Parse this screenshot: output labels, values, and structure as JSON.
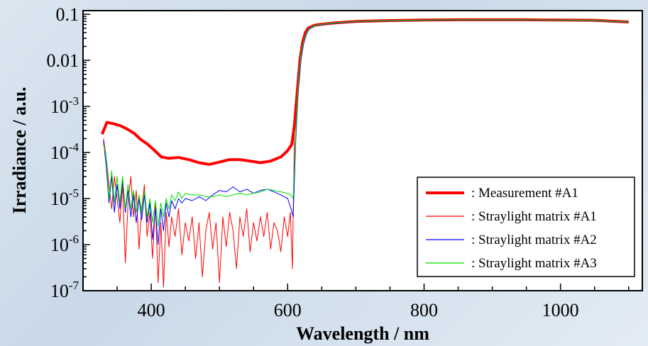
{
  "chart_data": {
    "type": "line",
    "title": "",
    "xlabel": "Wavelength / nm",
    "ylabel": "Irradiance / a.u.",
    "xlim": [
      300,
      1120
    ],
    "ylim": [
      1e-07,
      0.12
    ],
    "yscale": "log",
    "grid": false,
    "legend_position": "bottom-right",
    "x_ticks": [
      400,
      600,
      800,
      1000
    ],
    "x_tick_labels": [
      "400",
      "600",
      "800",
      "1000"
    ],
    "y_ticks": [
      1e-07,
      1e-06,
      1e-05,
      0.0001,
      0.001,
      0.01,
      0.1
    ],
    "y_tick_labels": [
      {
        "base": "10",
        "exp": "-7"
      },
      {
        "base": "10",
        "exp": "-6"
      },
      {
        "base": "10",
        "exp": "-5"
      },
      {
        "base": "10",
        "exp": "-4"
      },
      {
        "base": "10",
        "exp": "-3"
      },
      {
        "base": "0.01",
        "exp": ""
      },
      {
        "base": "0.1",
        "exp": ""
      }
    ],
    "series": [
      {
        "name": ": Measurement #A1",
        "color": "#ff0000",
        "line_width": 4,
        "x": [
          328,
          335,
          345,
          355,
          365,
          375,
          385,
          395,
          405,
          415,
          425,
          440,
          455,
          470,
          485,
          500,
          515,
          530,
          545,
          560,
          575,
          590,
          600,
          606,
          610,
          614,
          618,
          622,
          626,
          630,
          640,
          655,
          670,
          700,
          750,
          800,
          850,
          900,
          950,
          1000,
          1050,
          1100
        ],
        "y": [
          0.00025,
          0.00045,
          0.00042,
          0.00038,
          0.00032,
          0.00026,
          0.00019,
          0.00015,
          0.00011,
          8e-05,
          7.5e-05,
          7.8e-05,
          7e-05,
          6e-05,
          5.5e-05,
          6.2e-05,
          7e-05,
          7e-05,
          6.5e-05,
          6e-05,
          6.5e-05,
          8e-05,
          0.00011,
          0.00015,
          0.0004,
          0.002,
          0.01,
          0.025,
          0.04,
          0.05,
          0.058,
          0.062,
          0.065,
          0.07,
          0.073,
          0.075,
          0.076,
          0.076,
          0.076,
          0.075,
          0.074,
          0.068
        ]
      },
      {
        "name": ": Straylight matrix #A1",
        "color": "#ff0000",
        "line_width": 1,
        "x": [
          330,
          334,
          338,
          342,
          346,
          350,
          354,
          358,
          362,
          366,
          370,
          374,
          378,
          382,
          386,
          390,
          394,
          398,
          402,
          406,
          410,
          414,
          418,
          422,
          426,
          430,
          435,
          440,
          445,
          450,
          455,
          460,
          465,
          470,
          475,
          480,
          485,
          490,
          495,
          500,
          505,
          510,
          515,
          520,
          525,
          530,
          535,
          540,
          545,
          550,
          555,
          560,
          565,
          570,
          575,
          580,
          585,
          590,
          595,
          600,
          604,
          607,
          610,
          614,
          618,
          622,
          626,
          630,
          640,
          655,
          670,
          700,
          750,
          800,
          850,
          900,
          950,
          1000,
          1050,
          1100
        ],
        "y": [
          0.0002,
          8e-05,
          2e-05,
          6e-06,
          3e-05,
          1e-05,
          3e-06,
          2e-05,
          4e-07,
          8e-06,
          3e-05,
          4e-06,
          1.5e-05,
          8e-07,
          6e-06,
          2e-05,
          1.5e-06,
          5e-06,
          5e-07,
          8e-06,
          1.5e-07,
          3e-06,
          1.2e-07,
          5e-06,
          9e-07,
          4e-06,
          1.5e-06,
          6e-06,
          6e-07,
          3e-06,
          1.2e-06,
          4e-06,
          5e-07,
          3e-06,
          2e-07,
          2e-06,
          5e-06,
          8e-07,
          3e-06,
          1.5e-07,
          4e-06,
          9e-07,
          5e-06,
          2e-06,
          3e-07,
          4e-06,
          1.5e-06,
          6e-06,
          7e-07,
          3e-06,
          1.2e-06,
          4e-06,
          1.5e-06,
          5e-06,
          8e-07,
          3e-06,
          2e-06,
          7e-07,
          4e-06,
          1.5e-06,
          5e-06,
          3e-07,
          0.0003,
          0.002,
          0.01,
          0.025,
          0.04,
          0.05,
          0.058,
          0.062,
          0.065,
          0.07,
          0.073,
          0.075,
          0.076,
          0.076,
          0.076,
          0.075,
          0.074,
          0.068
        ]
      },
      {
        "name": ": Straylight matrix #A2",
        "color": "#0000ff",
        "line_width": 1,
        "x": [
          330,
          334,
          338,
          342,
          346,
          350,
          354,
          358,
          362,
          366,
          370,
          374,
          378,
          382,
          386,
          390,
          394,
          398,
          402,
          406,
          410,
          414,
          418,
          422,
          426,
          430,
          435,
          440,
          445,
          450,
          460,
          470,
          480,
          490,
          500,
          510,
          520,
          530,
          540,
          550,
          560,
          570,
          580,
          590,
          600,
          605,
          608,
          612,
          616,
          620,
          624,
          628,
          632,
          640,
          655,
          670,
          700,
          750,
          800,
          850,
          900,
          950,
          1000,
          1050,
          1100
        ],
        "y": [
          0.00018,
          5e-05,
          8e-06,
          3e-05,
          5e-06,
          2e-05,
          6e-06,
          2.5e-05,
          5e-06,
          1.5e-05,
          4e-06,
          1.2e-05,
          3e-06,
          1e-05,
          3.5e-06,
          1.2e-05,
          3e-06,
          8e-06,
          1.3e-06,
          6e-06,
          1e-06,
          6e-06,
          2e-06,
          8e-06,
          4e-06,
          9e-06,
          6e-06,
          1e-05,
          8e-06,
          1e-05,
          9e-06,
          1.1e-05,
          9e-06,
          1.2e-05,
          1.5e-05,
          1.4e-05,
          1.8e-05,
          1.4e-05,
          1.6e-05,
          1.3e-05,
          1.5e-05,
          1.6e-05,
          1.4e-05,
          1.2e-05,
          1e-05,
          6e-06,
          4e-06,
          0.0002,
          0.003,
          0.012,
          0.025,
          0.038,
          0.048,
          0.056,
          0.061,
          0.064,
          0.069,
          0.072,
          0.074,
          0.075,
          0.075,
          0.075,
          0.074,
          0.073,
          0.067
        ]
      },
      {
        "name": ": Straylight matrix #A3",
        "color": "#00dd00",
        "line_width": 1,
        "x": [
          330,
          334,
          338,
          342,
          346,
          350,
          354,
          358,
          362,
          366,
          370,
          374,
          378,
          382,
          386,
          390,
          394,
          398,
          402,
          406,
          410,
          414,
          418,
          422,
          426,
          430,
          435,
          440,
          445,
          450,
          460,
          470,
          480,
          490,
          500,
          510,
          520,
          530,
          540,
          550,
          560,
          570,
          580,
          590,
          600,
          605,
          608,
          612,
          616,
          620,
          624,
          628,
          632,
          640,
          655,
          670,
          700,
          750,
          800,
          850,
          900,
          950,
          1000,
          1050,
          1100
        ],
        "y": [
          0.00015,
          8e-05,
          1e-05,
          4e-05,
          8e-06,
          3e-05,
          8e-06,
          3e-05,
          6e-06,
          2e-05,
          6e-06,
          1.5e-05,
          5e-06,
          1.2e-05,
          5e-06,
          1.5e-05,
          4e-06,
          1e-05,
          3e-06,
          9e-06,
          2.5e-06,
          8e-06,
          4e-06,
          1e-05,
          6e-06,
          1.2e-05,
          9e-06,
          1.4e-05,
          1e-05,
          1.3e-05,
          1.2e-05,
          1.2e-05,
          1.1e-05,
          1.1e-05,
          1.2e-05,
          1.1e-05,
          1.2e-05,
          1.3e-05,
          1.2e-05,
          1.3e-05,
          1.4e-05,
          1.6e-05,
          1.5e-05,
          1.4e-05,
          1.3e-05,
          1.2e-05,
          1e-05,
          0.0003,
          0.004,
          0.014,
          0.028,
          0.04,
          0.05,
          0.057,
          0.062,
          0.065,
          0.07,
          0.073,
          0.075,
          0.076,
          0.076,
          0.076,
          0.075,
          0.074,
          0.068
        ]
      }
    ]
  }
}
